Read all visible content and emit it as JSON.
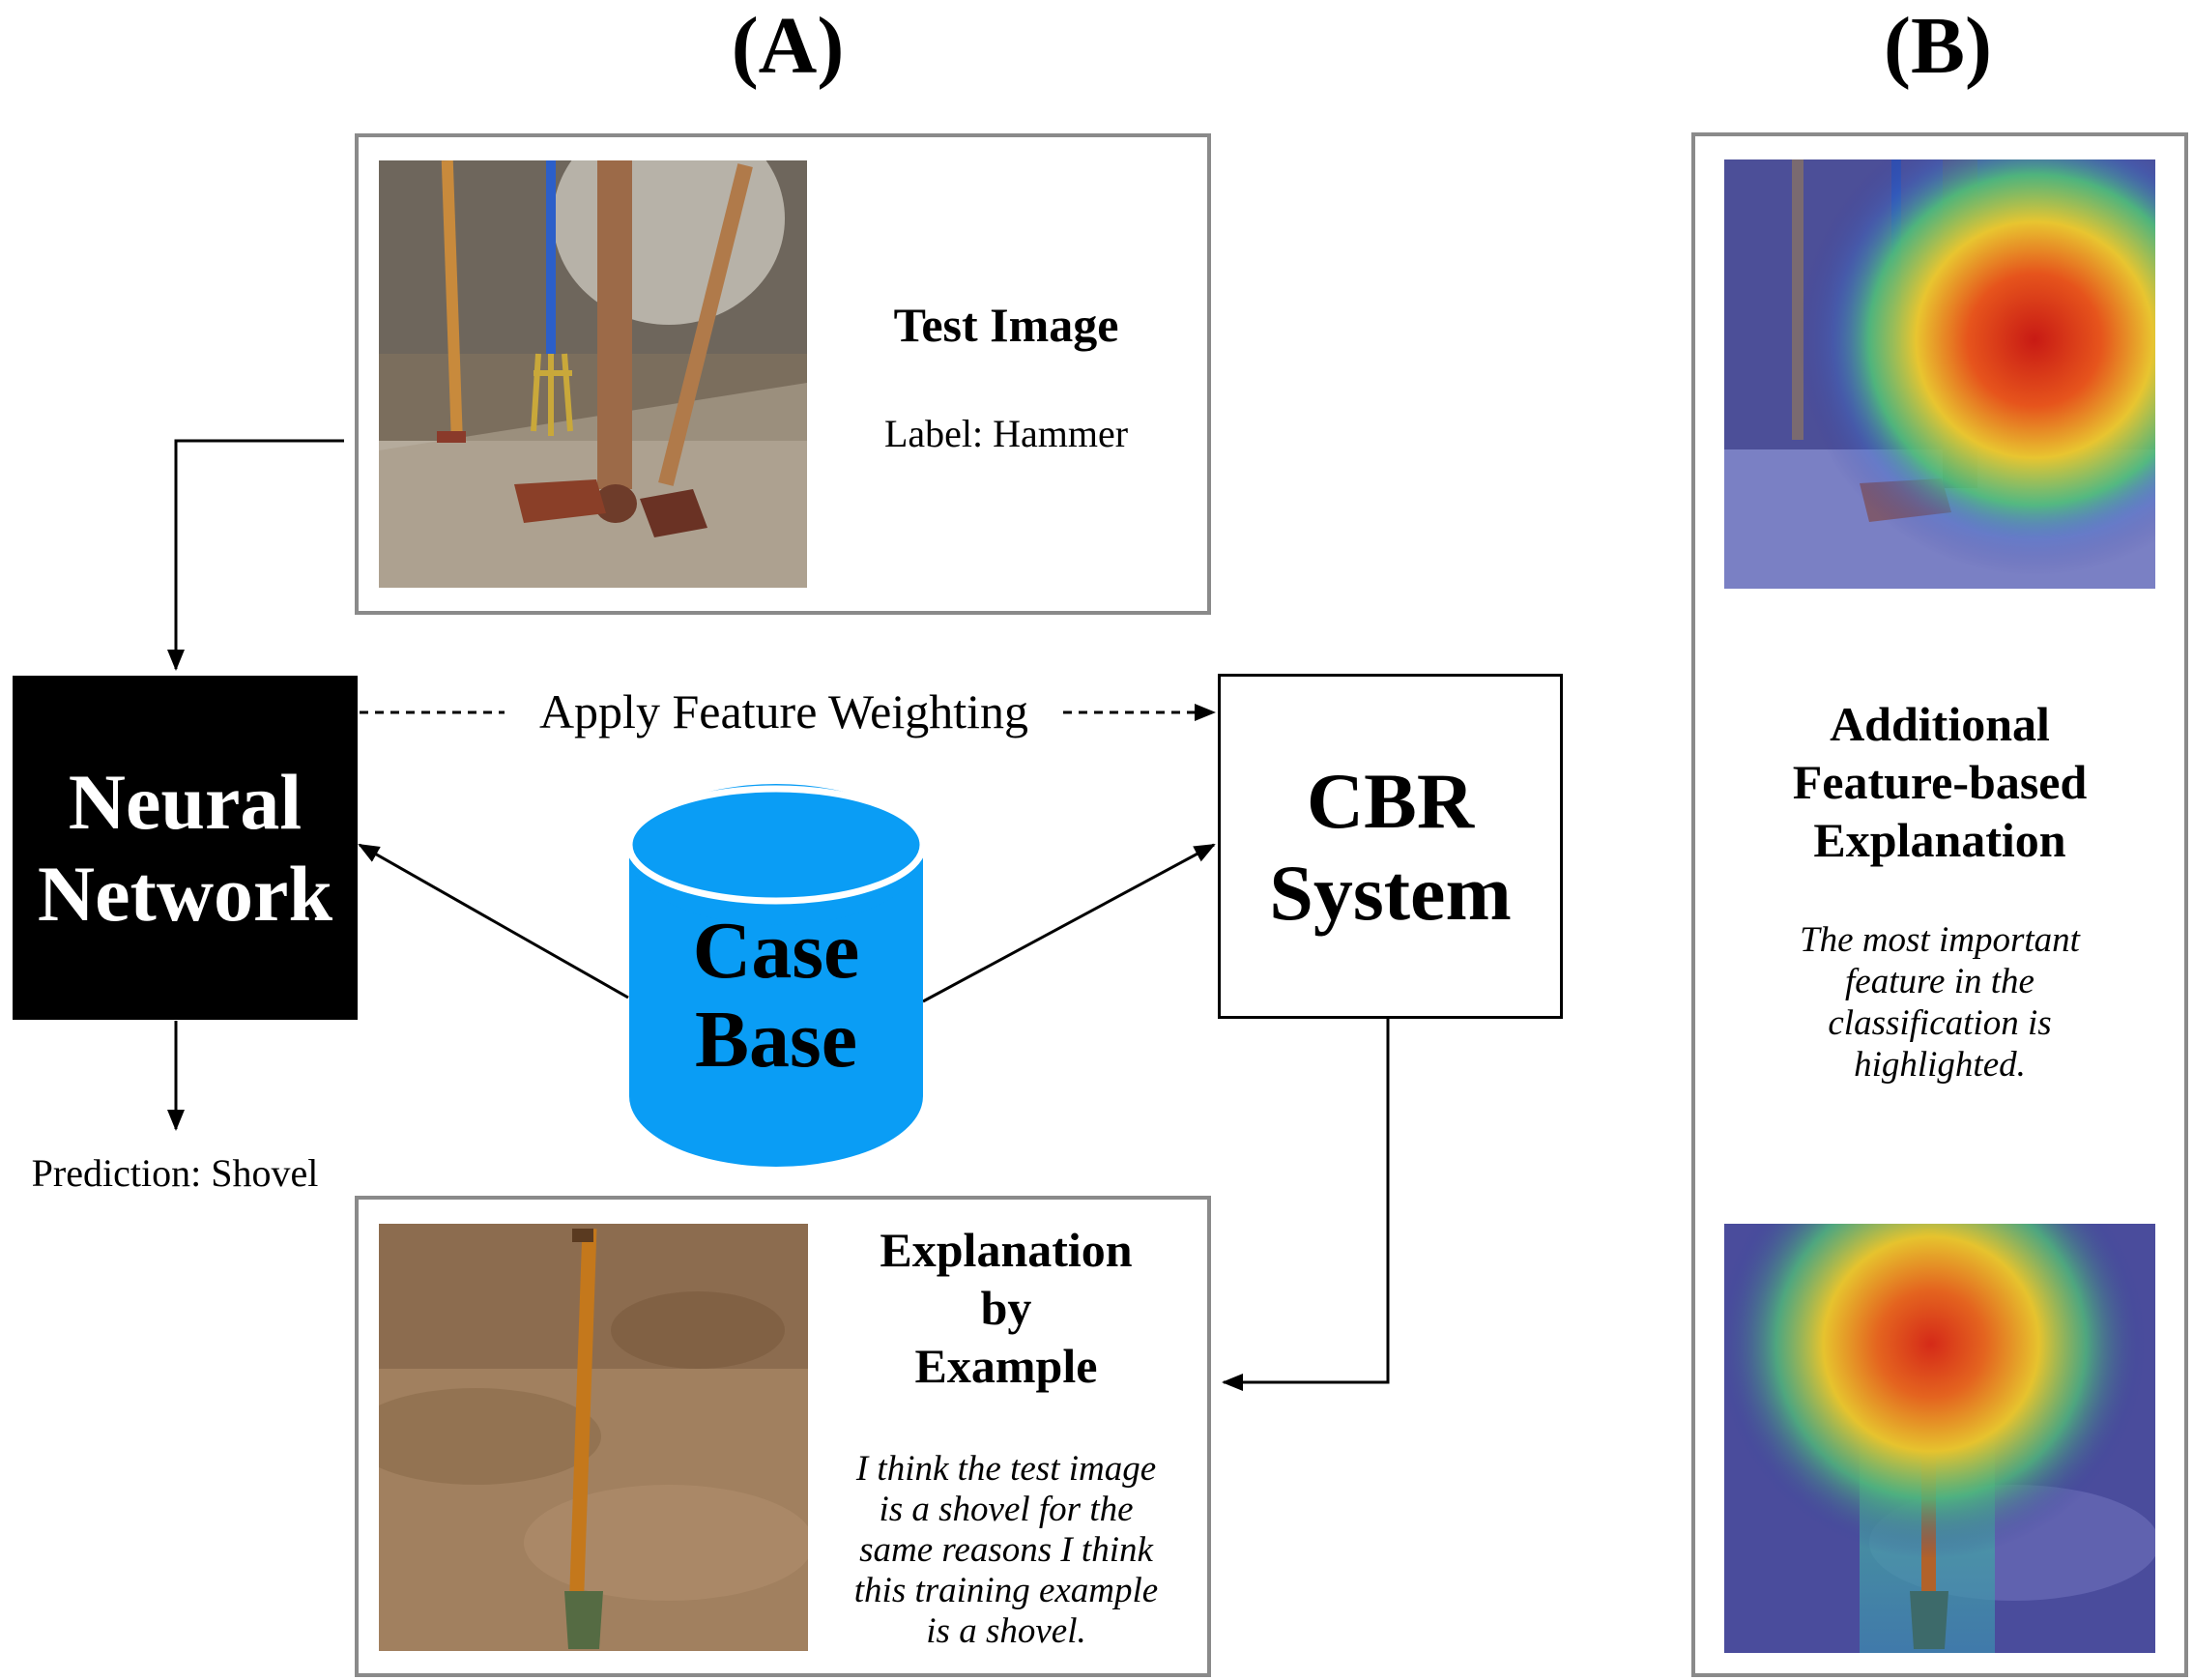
{
  "panels": {
    "a_label": "(A)",
    "b_label": "(B)"
  },
  "test_box": {
    "title": "Test Image",
    "label": "Label: Hammer"
  },
  "neural_network": {
    "line1": "Neural",
    "line2": "Network"
  },
  "cbr_system": {
    "line1": "CBR",
    "line2": "System"
  },
  "case_base": {
    "line1": "Case",
    "line2": "Base"
  },
  "feature_weighting": "Apply Feature Weighting",
  "prediction": "Prediction: Shovel",
  "example_box": {
    "title_line1": "Explanation",
    "title_line2": "by",
    "title_line3": "Example",
    "body_line1": "I think the test image",
    "body_line2": "is a shovel for the",
    "body_line3": "same reasons I think",
    "body_line4": "this training example",
    "body_line5": "is a shovel."
  },
  "feature_box": {
    "title_line1": "Additional",
    "title_line2": "Feature-based",
    "title_line3": "Explanation",
    "body_line1": "The most important",
    "body_line2": "feature in the",
    "body_line3": "classification is",
    "body_line4": "highlighted."
  },
  "colors": {
    "case_base": "#0a9df5",
    "box_border": "#8a8a8a",
    "neural_network_fill": "#000000"
  }
}
